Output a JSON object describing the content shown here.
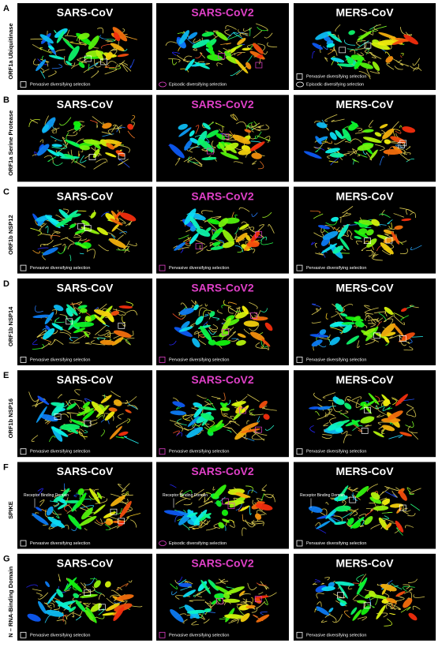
{
  "panels": [
    {
      "letter": "A",
      "label": "ORF1a Ubiquitinase",
      "cells": [
        {
          "title": "SARS-CoV",
          "legend": [
            {
              "text": "Pervasive diversifying selection",
              "marker": "square"
            }
          ]
        },
        {
          "title": "SARS-CoV2",
          "legend": [
            {
              "text": "Episodic diversifying selection",
              "marker": "ellipse"
            }
          ]
        },
        {
          "title": "MERS-CoV",
          "legend": [
            {
              "text": "Pervasive diversifying selection",
              "marker": "square"
            },
            {
              "text": "Episodic diversifying selection",
              "marker": "ellipse"
            }
          ]
        }
      ]
    },
    {
      "letter": "B",
      "label": "ORF1a Serine Protease",
      "cells": [
        {
          "title": "SARS-CoV",
          "legend": []
        },
        {
          "title": "SARS-CoV2",
          "legend": []
        },
        {
          "title": "MERS-CoV",
          "legend": []
        }
      ]
    },
    {
      "letter": "C",
      "label": "ORF1b NSP12",
      "cells": [
        {
          "title": "SARS-CoV",
          "legend": [
            {
              "text": "Pervasive diversifying selection",
              "marker": "square"
            }
          ]
        },
        {
          "title": "SARS-CoV2",
          "legend": [
            {
              "text": "Pervasive diversifying selection",
              "marker": "square"
            }
          ]
        },
        {
          "title": "MERS-CoV",
          "legend": [
            {
              "text": "Pervasive diversifying selection",
              "marker": "square"
            }
          ]
        }
      ]
    },
    {
      "letter": "D",
      "label": "ORF1b NSP14",
      "cells": [
        {
          "title": "SARS-CoV",
          "legend": [
            {
              "text": "Pervasive diversifying selection",
              "marker": "square"
            }
          ]
        },
        {
          "title": "SARS-CoV2",
          "legend": [
            {
              "text": "Pervasive diversifying selection",
              "marker": "square"
            }
          ]
        },
        {
          "title": "MERS-CoV",
          "legend": [
            {
              "text": "Pervasive diversifying selection",
              "marker": "square"
            }
          ]
        }
      ]
    },
    {
      "letter": "E",
      "label": "ORF1b NSP16",
      "cells": [
        {
          "title": "SARS-CoV",
          "legend": [
            {
              "text": "Pervasive diversifying selection",
              "marker": "square"
            }
          ]
        },
        {
          "title": "SARS-CoV2",
          "legend": [
            {
              "text": "Pervasive diversifying selection",
              "marker": "square"
            }
          ]
        },
        {
          "title": "MERS-CoV",
          "legend": [
            {
              "text": "Pervasive diversifying selection",
              "marker": "square"
            }
          ]
        }
      ]
    },
    {
      "letter": "F",
      "label": "SPIKE",
      "cells": [
        {
          "title": "SARS-CoV",
          "note": "Receptor Binding Domain",
          "legend": [
            {
              "text": "Pervasive diversifying selection",
              "marker": "square"
            }
          ]
        },
        {
          "title": "SARS-CoV2",
          "note": "Receptor Binding Domain",
          "legend": [
            {
              "text": "Episodic diversifying selection",
              "marker": "ellipse"
            }
          ]
        },
        {
          "title": "MERS-CoV",
          "note": "Receptor Binding Domain",
          "legend": [
            {
              "text": "Pervasive diversifying selection",
              "marker": "square"
            }
          ]
        }
      ]
    },
    {
      "letter": "G",
      "label": "N – RNA-Binding Domain",
      "cells": [
        {
          "title": "SARS-CoV",
          "legend": [
            {
              "text": "Pervasive diversifying selection",
              "marker": "square"
            }
          ]
        },
        {
          "title": "SARS-CoV2",
          "legend": [
            {
              "text": "Pervasive diversifying selection",
              "marker": "square"
            }
          ]
        },
        {
          "title": "MERS-CoV",
          "legend": [
            {
              "text": "Pervasive diversifying selection",
              "marker": "square"
            }
          ]
        }
      ]
    }
  ]
}
